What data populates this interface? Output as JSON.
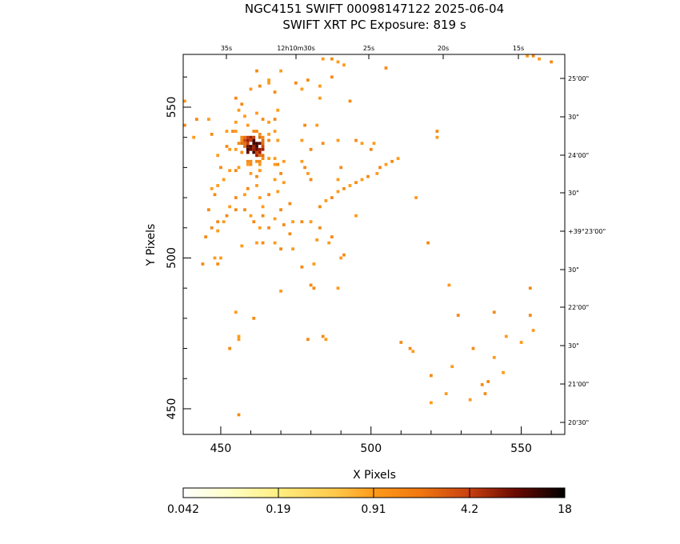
{
  "header": {
    "title_line1": "NGC4151 SWIFT 00098147122 2025-06-04",
    "title_line2": "SWIFT XRT PC Exposure:       819 s"
  },
  "chart_data": {
    "type": "heatmap",
    "xlabel": "X Pixels",
    "ylabel": "Y Pixels",
    "xlim": [
      437.5,
      564.5
    ],
    "ylim": [
      441.5,
      567.5
    ],
    "x_ticks": [
      450,
      500,
      550
    ],
    "y_ticks": [
      450,
      500,
      550
    ],
    "ra_ticks": [
      "35s",
      "12h10m30s",
      "25s",
      "20s",
      "15s"
    ],
    "dec_ticks": [
      "25'00\"",
      "30\"",
      "24'00\"",
      "30\"",
      "+39°23'00\"",
      "30\"",
      "22'00\"",
      "30\"",
      "21'00\"",
      "20'30\""
    ],
    "colorbar": {
      "scale": "log",
      "tick_labels": [
        "0.042",
        "0.19",
        "0.91",
        "4.2",
        "18"
      ],
      "min": 0.042,
      "max": 18
    },
    "source_center": [
      461,
      537
    ],
    "events": [
      [
        438,
        552
      ],
      [
        438,
        544
      ],
      [
        441,
        540
      ],
      [
        442,
        546
      ],
      [
        446,
        546
      ],
      [
        447,
        541
      ],
      [
        449,
        534
      ],
      [
        450,
        530
      ],
      [
        452,
        542
      ],
      [
        455,
        553
      ],
      [
        456,
        549
      ],
      [
        452,
        537
      ],
      [
        449,
        524
      ],
      [
        448,
        521
      ],
      [
        451,
        526
      ],
      [
        455,
        520
      ],
      [
        453,
        517
      ],
      [
        455,
        516
      ],
      [
        458,
        521
      ],
      [
        458,
        516
      ],
      [
        456,
        530
      ],
      [
        455,
        529
      ],
      [
        453,
        536
      ],
      [
        460,
        531
      ],
      [
        460,
        528
      ],
      [
        462,
        527
      ],
      [
        462,
        524
      ],
      [
        463,
        529
      ],
      [
        463,
        520
      ],
      [
        459,
        523
      ],
      [
        464,
        517
      ],
      [
        466,
        521
      ],
      [
        468,
        526
      ],
      [
        469,
        531
      ],
      [
        471,
        532
      ],
      [
        470,
        528
      ],
      [
        469,
        522
      ],
      [
        470,
        516
      ],
      [
        471,
        525
      ],
      [
        473,
        518
      ],
      [
        460,
        556
      ],
      [
        463,
        557
      ],
      [
        466,
        558
      ],
      [
        468,
        555
      ],
      [
        466,
        559
      ],
      [
        462,
        562
      ],
      [
        470,
        562
      ],
      [
        475,
        558
      ],
      [
        477,
        556
      ],
      [
        479,
        559
      ],
      [
        483,
        557
      ],
      [
        487,
        560
      ],
      [
        491,
        564
      ],
      [
        505,
        563
      ],
      [
        477,
        539
      ],
      [
        480,
        536
      ],
      [
        482,
        544
      ],
      [
        484,
        538
      ],
      [
        489,
        539
      ],
      [
        495,
        539
      ],
      [
        497,
        538
      ],
      [
        500,
        536
      ],
      [
        501,
        538
      ],
      [
        480,
        526
      ],
      [
        479,
        528
      ],
      [
        478,
        530
      ],
      [
        477,
        532
      ],
      [
        490,
        530
      ],
      [
        489,
        526
      ],
      [
        493,
        552
      ],
      [
        483,
        553
      ],
      [
        478,
        544
      ],
      [
        458,
        547
      ],
      [
        457,
        551
      ],
      [
        455,
        545
      ],
      [
        454,
        542
      ],
      [
        462,
        548
      ],
      [
        464,
        546
      ],
      [
        466,
        545
      ],
      [
        468,
        546
      ],
      [
        469,
        549
      ],
      [
        446,
        516
      ],
      [
        447,
        523
      ],
      [
        466,
        510
      ],
      [
        462,
        505
      ],
      [
        464,
        505
      ],
      [
        468,
        505
      ],
      [
        470,
        503
      ],
      [
        474,
        503
      ],
      [
        473,
        508
      ],
      [
        482,
        506
      ],
      [
        487,
        507
      ],
      [
        486,
        505
      ],
      [
        483,
        510
      ],
      [
        495,
        514
      ],
      [
        477,
        497
      ],
      [
        481,
        498
      ],
      [
        491,
        501
      ],
      [
        490,
        500
      ],
      [
        481,
        490
      ],
      [
        489,
        490
      ],
      [
        480,
        491
      ],
      [
        457,
        504
      ],
      [
        445,
        507
      ],
      [
        448,
        500
      ],
      [
        449,
        498
      ],
      [
        450,
        500
      ],
      [
        444,
        498
      ],
      [
        455,
        482
      ],
      [
        461,
        480
      ],
      [
        456,
        473
      ],
      [
        453,
        470
      ],
      [
        456,
        474
      ],
      [
        479,
        473
      ],
      [
        485,
        473
      ],
      [
        484,
        474
      ],
      [
        470,
        489
      ],
      [
        513,
        470
      ],
      [
        514,
        469
      ],
      [
        510,
        472
      ],
      [
        515,
        520
      ],
      [
        519,
        505
      ],
      [
        526,
        491
      ],
      [
        529,
        481
      ],
      [
        541,
        467
      ],
      [
        553,
        490
      ],
      [
        527,
        464
      ],
      [
        520,
        461
      ],
      [
        525,
        455
      ],
      [
        538,
        455
      ],
      [
        544,
        462
      ],
      [
        537,
        458
      ],
      [
        550,
        472
      ],
      [
        553,
        481
      ],
      [
        554,
        476
      ],
      [
        456,
        448
      ],
      [
        533,
        453
      ],
      [
        539,
        459
      ],
      [
        522,
        540
      ],
      [
        522,
        542
      ],
      [
        552,
        567
      ],
      [
        554,
        567
      ],
      [
        556,
        566
      ],
      [
        560,
        565
      ],
      [
        520,
        452
      ],
      [
        534,
        470
      ],
      [
        545,
        474
      ],
      [
        541,
        482
      ],
      [
        484,
        566
      ],
      [
        487,
        566
      ],
      [
        489,
        565
      ],
      [
        452,
        514
      ],
      [
        451,
        512
      ],
      [
        449,
        512
      ],
      [
        449,
        509
      ],
      [
        447,
        510
      ],
      [
        460,
        514
      ],
      [
        461,
        512
      ],
      [
        463,
        510
      ],
      [
        464,
        514
      ],
      [
        468,
        513
      ],
      [
        471,
        511
      ],
      [
        474,
        512
      ],
      [
        477,
        512
      ],
      [
        480,
        512
      ],
      [
        483,
        517
      ],
      [
        485,
        519
      ],
      [
        487,
        520
      ],
      [
        489,
        522
      ],
      [
        491,
        523
      ],
      [
        493,
        524
      ],
      [
        495,
        525
      ],
      [
        497,
        526
      ],
      [
        499,
        527
      ],
      [
        502,
        528
      ],
      [
        503,
        530
      ],
      [
        505,
        531
      ],
      [
        507,
        532
      ],
      [
        509,
        533
      ]
    ]
  }
}
